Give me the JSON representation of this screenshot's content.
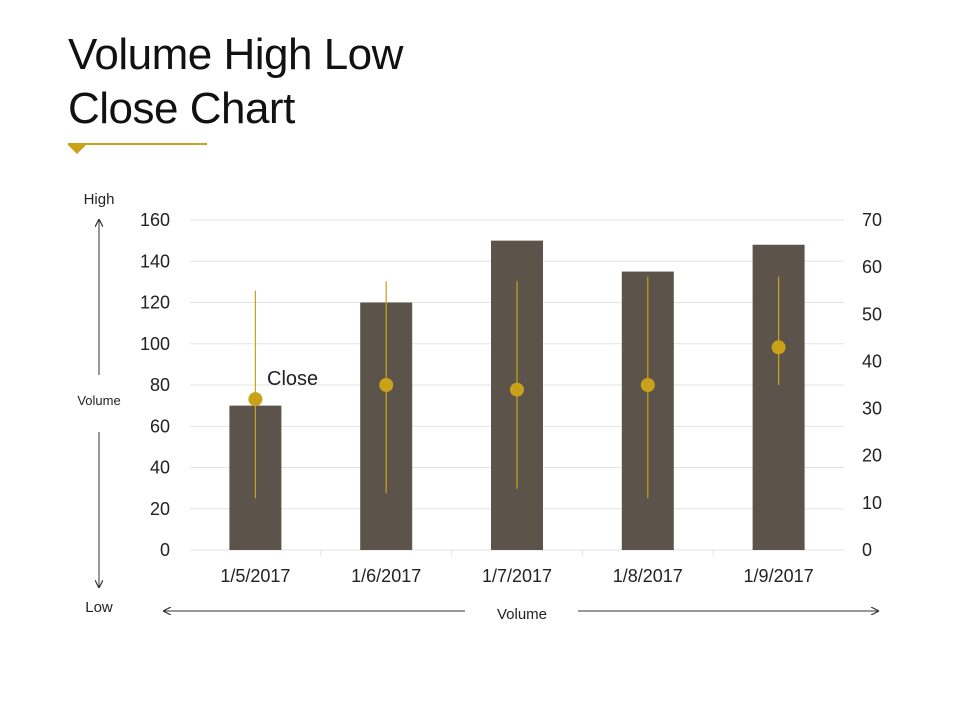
{
  "title_line1": "Volume High Low",
  "title_line2": "Close Chart",
  "left_side": {
    "high": "High",
    "middle": "Volume",
    "low": "Low"
  },
  "bottom_label": "Volume",
  "annotation": "Close",
  "colors": {
    "accent": "#c9a21a",
    "bar": "#5c544b",
    "grid": "#e3e3e3"
  },
  "chart_data": {
    "type": "bar",
    "categories": [
      "1/5/2017",
      "1/6/2017",
      "1/7/2017",
      "1/8/2017",
      "1/9/2017"
    ],
    "volume": [
      70,
      120,
      150,
      135,
      148
    ],
    "high": [
      55,
      57,
      57,
      58,
      58
    ],
    "low": [
      11,
      12,
      13,
      11,
      35
    ],
    "close": [
      32,
      35,
      34,
      35,
      43
    ],
    "ylim_left": [
      0,
      160
    ],
    "yticks_left": [
      "160",
      "140",
      "120",
      "100",
      "80",
      "60",
      "40",
      "20",
      "0"
    ],
    "ylim_right": [
      0,
      70
    ],
    "yticks_right": [
      "70",
      "60",
      "50",
      "40",
      "30",
      "20",
      "10",
      "0"
    ],
    "grid": true
  }
}
